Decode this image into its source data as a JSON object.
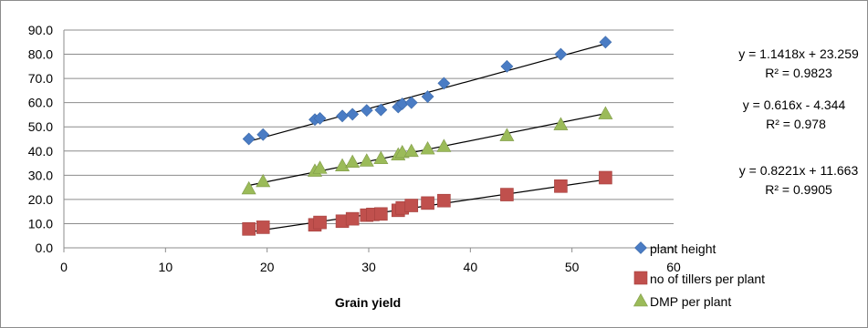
{
  "chart_data": {
    "type": "scatter",
    "xlabel": "Grain yield",
    "ylabel": "",
    "xlim": [
      0,
      60
    ],
    "ylim": [
      0,
      90
    ],
    "x_ticks": [
      "0",
      "10",
      "20",
      "30",
      "40",
      "50",
      "60"
    ],
    "y_ticks": [
      "0.0",
      "10.0",
      "20.0",
      "30.0",
      "40.0",
      "50.0",
      "60.0",
      "70.0",
      "80.0",
      "90.0"
    ],
    "grid": "horizontal",
    "legend_position": "bottom-right",
    "series": [
      {
        "name": "plant height",
        "marker": "diamond",
        "color": "#4a7cc4",
        "x": [
          18.2,
          19.6,
          24.7,
          25.2,
          27.4,
          28.4,
          29.8,
          31.2,
          32.9,
          33.3,
          34.2,
          35.8,
          37.4,
          43.6,
          48.9,
          53.3
        ],
        "y": [
          45.0,
          46.8,
          53.0,
          53.5,
          54.5,
          55.2,
          56.8,
          57.0,
          58.2,
          59.5,
          60.0,
          62.5,
          68.0,
          75.0,
          80.0,
          85.0
        ],
        "trendline": {
          "slope": 1.1418,
          "intercept": 23.259
        },
        "equation": "y = 1.1418x + 23.259",
        "r2": "R² = 0.9823"
      },
      {
        "name": "no of tillers per plant",
        "marker": "square",
        "color": "#c0504d",
        "x": [
          18.2,
          19.6,
          24.7,
          25.2,
          27.4,
          28.4,
          29.8,
          30.4,
          31.2,
          32.9,
          33.3,
          34.2,
          35.8,
          37.4,
          43.6,
          48.9,
          53.3
        ],
        "y": [
          7.8,
          8.5,
          9.5,
          10.5,
          11.0,
          12.0,
          13.5,
          13.8,
          14.0,
          15.5,
          16.5,
          17.5,
          18.5,
          19.5,
          22.0,
          25.5,
          29.0
        ],
        "trendline": {
          "slope": 0.616,
          "intercept": -4.344
        },
        "equation": "y = 0.616x - 4.344",
        "r2": "R² = 0.978"
      },
      {
        "name": "DMP per plant",
        "marker": "triangle",
        "color": "#9bbb59",
        "x": [
          18.2,
          19.6,
          24.7,
          25.2,
          27.4,
          28.4,
          29.8,
          31.2,
          32.9,
          33.3,
          34.2,
          35.8,
          37.4,
          43.6,
          48.9,
          53.3
        ],
        "y": [
          24.5,
          27.5,
          31.8,
          33.0,
          34.0,
          35.5,
          36.0,
          37.0,
          38.5,
          39.5,
          40.0,
          41.0,
          42.0,
          46.5,
          51.0,
          55.5
        ],
        "trendline": {
          "slope": 0.8221,
          "intercept": 11.663
        },
        "equation": "y = 0.8221x + 11.663",
        "r2": "R² = 0.9905"
      }
    ]
  }
}
